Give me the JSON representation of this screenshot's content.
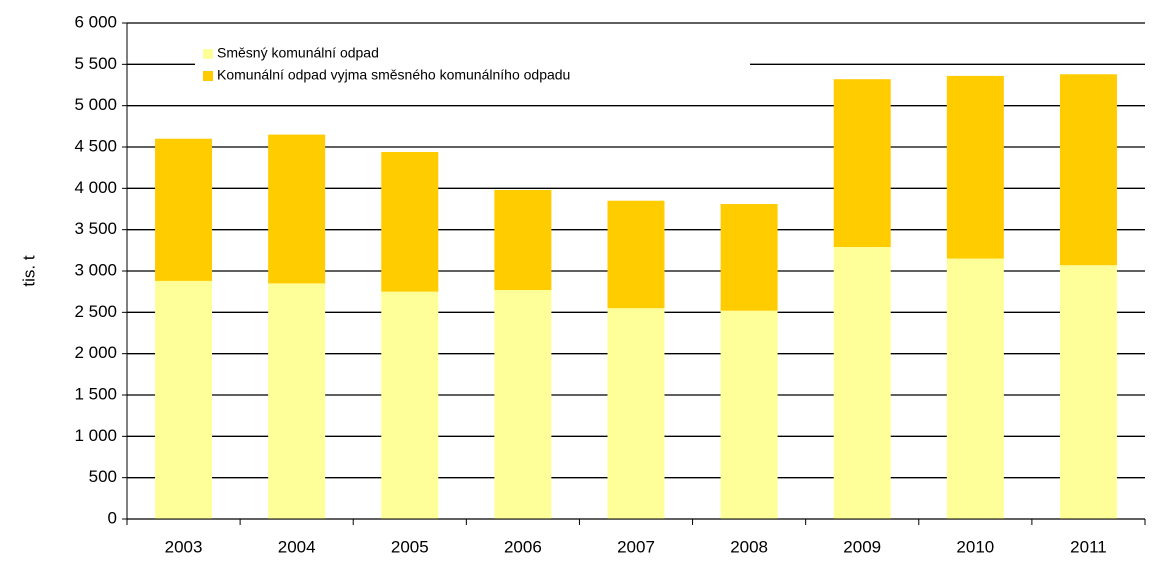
{
  "chart_data": {
    "type": "stacked-bar",
    "y_label": "tis. t",
    "categories": [
      "2003",
      "2004",
      "2005",
      "2006",
      "2007",
      "2008",
      "2009",
      "2010",
      "2011"
    ],
    "series": [
      {
        "name": "Směsný komunální odpad",
        "color": "#ffff99",
        "values": [
          2880,
          2850,
          2750,
          2770,
          2550,
          2520,
          3290,
          3150,
          3070
        ]
      },
      {
        "name": "Komunální odpad vyjma směsného komunálního odpadu",
        "color": "#ffcc00",
        "values": [
          1720,
          1800,
          1690,
          1210,
          1300,
          1290,
          2030,
          2210,
          2310
        ]
      }
    ],
    "ylim": [
      0,
      6000
    ],
    "yticks": [
      0,
      500,
      {
        "value": 1000,
        "label": "1 000"
      },
      {
        "value": 1500,
        "label": "1 500"
      },
      {
        "value": 2000,
        "label": "2 000"
      },
      {
        "value": 2500,
        "label": "2 500"
      },
      {
        "value": 3000,
        "label": "3 000"
      },
      {
        "value": 3500,
        "label": "3 500"
      },
      {
        "value": 4000,
        "label": "4 000"
      },
      {
        "value": 4500,
        "label": "4 500"
      },
      {
        "value": 5000,
        "label": "5 000"
      },
      {
        "value": 5500,
        "label": "5 500"
      },
      {
        "value": 6000,
        "label": "6 000"
      }
    ],
    "grid": true,
    "legend": "top-left"
  }
}
